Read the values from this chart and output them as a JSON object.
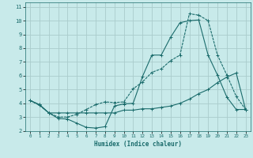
{
  "xlabel": "Humidex (Indice chaleur)",
  "bg_color": "#c8eaea",
  "grid_color": "#aacccc",
  "line_color": "#1a6b6b",
  "xlim": [
    -0.5,
    23.5
  ],
  "ylim": [
    2,
    11.3
  ],
  "xticks": [
    0,
    1,
    2,
    3,
    4,
    5,
    6,
    7,
    8,
    9,
    10,
    11,
    12,
    13,
    14,
    15,
    16,
    17,
    18,
    19,
    20,
    21,
    22,
    23
  ],
  "yticks": [
    2,
    3,
    4,
    5,
    6,
    7,
    8,
    9,
    10,
    11
  ],
  "line1_x": [
    0,
    1,
    2,
    3,
    4,
    5,
    6,
    7,
    8,
    9,
    10,
    11,
    12,
    13,
    14,
    15,
    16,
    17,
    18,
    19,
    20,
    21,
    22,
    23
  ],
  "line1_y": [
    4.2,
    3.9,
    3.3,
    2.9,
    2.85,
    2.55,
    2.25,
    2.2,
    2.3,
    3.8,
    3.95,
    4.0,
    5.95,
    7.5,
    7.5,
    8.8,
    9.85,
    10.0,
    10.05,
    7.5,
    6.05,
    4.45,
    3.55,
    3.55
  ],
  "line2_x": [
    0,
    1,
    2,
    3,
    4,
    5,
    6,
    7,
    8,
    9,
    10,
    11,
    12,
    13,
    14,
    15,
    16,
    17,
    18,
    19,
    20,
    21,
    22,
    23
  ],
  "line2_y": [
    4.2,
    3.9,
    3.3,
    3.3,
    3.3,
    3.3,
    3.3,
    3.3,
    3.3,
    3.3,
    3.5,
    3.5,
    3.6,
    3.6,
    3.7,
    3.8,
    4.0,
    4.3,
    4.7,
    5.0,
    5.5,
    5.9,
    6.2,
    3.55
  ],
  "line3_x": [
    0,
    1,
    2,
    3,
    4,
    5,
    6,
    7,
    8,
    9,
    10,
    11,
    12,
    13,
    14,
    15,
    16,
    17,
    18,
    19,
    20,
    21,
    22,
    23
  ],
  "line3_y": [
    4.2,
    3.85,
    3.3,
    3.0,
    3.0,
    3.2,
    3.55,
    3.9,
    4.1,
    4.05,
    4.1,
    5.05,
    5.55,
    6.25,
    6.5,
    7.1,
    7.5,
    10.5,
    10.4,
    10.0,
    7.5,
    6.05,
    4.5,
    3.55
  ]
}
